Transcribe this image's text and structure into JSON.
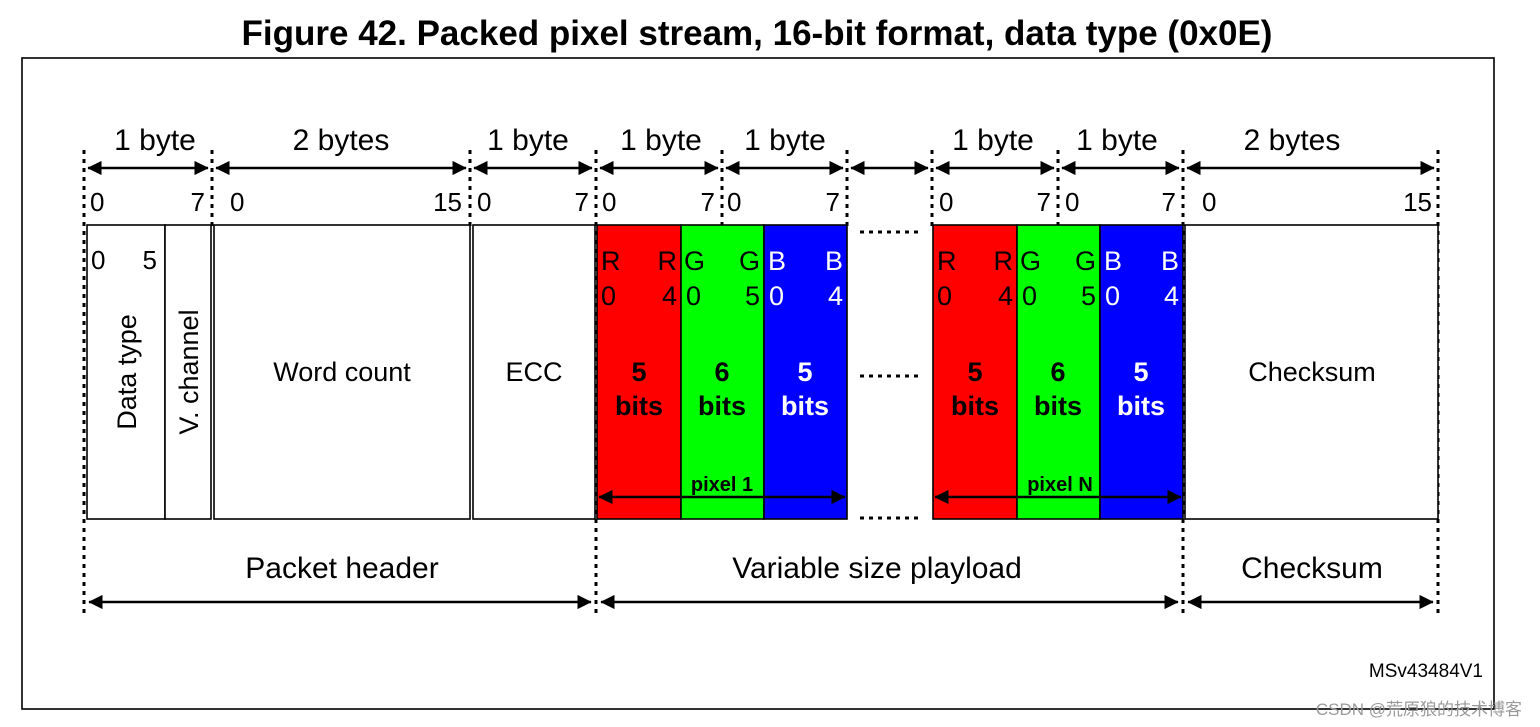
{
  "title": "Figure 42. Packed pixel stream, 16-bit format, data type (0x0E)",
  "byte_labels": [
    "1 byte",
    "2 bytes",
    "1 byte",
    "1 byte",
    "1 byte",
    "1 byte",
    "1 byte",
    "2 bytes"
  ],
  "bit_numbers": [
    "0",
    "7",
    "0",
    "15",
    "0",
    "7",
    "0",
    "7",
    "0",
    "7",
    "0",
    "7",
    "0",
    "7",
    "0",
    "15"
  ],
  "header": {
    "data_type_range": [
      "0",
      "5"
    ],
    "data_type_label": "Data type",
    "v_channel_label": "V. channel",
    "word_count_label": "Word count",
    "ecc_label": "ECC"
  },
  "pixel_groups": [
    {
      "label": "pixel 1",
      "channels": [
        {
          "letter": "R",
          "low": "0",
          "high": "4",
          "count": "5",
          "unit": "bits",
          "color": "#ff0000"
        },
        {
          "letter": "G",
          "low": "0",
          "high": "5",
          "count": "6",
          "unit": "bits",
          "color": "#00ff00"
        },
        {
          "letter": "B",
          "low": "0",
          "high": "4",
          "count": "5",
          "unit": "bits",
          "color": "#0000ff"
        }
      ]
    },
    {
      "label": "pixel N",
      "channels": [
        {
          "letter": "R",
          "low": "0",
          "high": "4",
          "count": "5",
          "unit": "bits",
          "color": "#ff0000"
        },
        {
          "letter": "G",
          "low": "0",
          "high": "5",
          "count": "6",
          "unit": "bits",
          "color": "#00ff00"
        },
        {
          "letter": "B",
          "low": "0",
          "high": "4",
          "count": "5",
          "unit": "bits",
          "color": "#0000ff"
        }
      ]
    }
  ],
  "checksum_field_label": "Checksum",
  "sections": [
    "Packet header",
    "Variable size playload",
    "Checksum"
  ],
  "figure_id": "MSv43484V1",
  "watermark": "CSDN @荒原狼的技术博客"
}
